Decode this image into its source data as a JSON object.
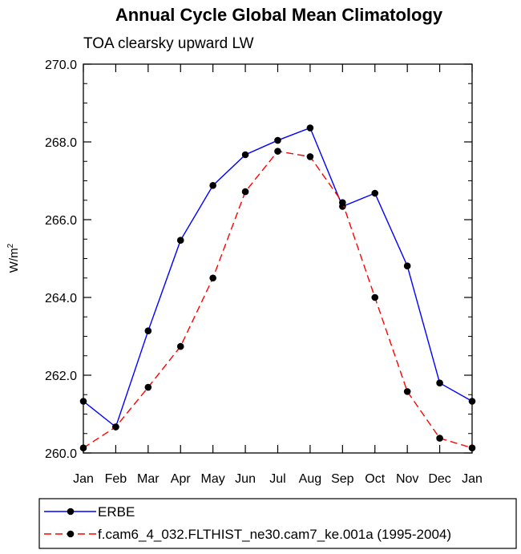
{
  "chart_data": {
    "type": "line",
    "title": "Annual Cycle Global Mean Climatology",
    "subtitle": "TOA clearsky upward LW",
    "ylabel": "W/m",
    "ylabel_sup": "2",
    "xlabel": "",
    "categories": [
      "Jan",
      "Feb",
      "Mar",
      "Apr",
      "May",
      "Jun",
      "Jul",
      "Aug",
      "Sep",
      "Oct",
      "Nov",
      "Dec",
      "Jan"
    ],
    "ylim": [
      260.0,
      270.0
    ],
    "yticks": [
      "260.0",
      "262.0",
      "264.0",
      "266.0",
      "268.0",
      "270.0"
    ],
    "grid": false,
    "legend_position": "bottom",
    "series": [
      {
        "name": "ERBE",
        "color": "#0000ff",
        "dash": "solid",
        "marker": "circle",
        "values": [
          261.33,
          260.67,
          263.14,
          265.47,
          266.88,
          267.67,
          268.04,
          268.36,
          266.34,
          266.68,
          264.81,
          261.8,
          261.33
        ]
      },
      {
        "name": "f.cam6_4_032.FLTHIST_ne30.cam7_ke.001a (1995-2004)",
        "color": "#ff0000",
        "dash": "dashed",
        "marker": "circle",
        "values": [
          260.13,
          260.67,
          261.69,
          262.74,
          264.5,
          266.72,
          267.76,
          267.62,
          266.44,
          264.0,
          261.58,
          260.38,
          260.13
        ]
      }
    ]
  }
}
